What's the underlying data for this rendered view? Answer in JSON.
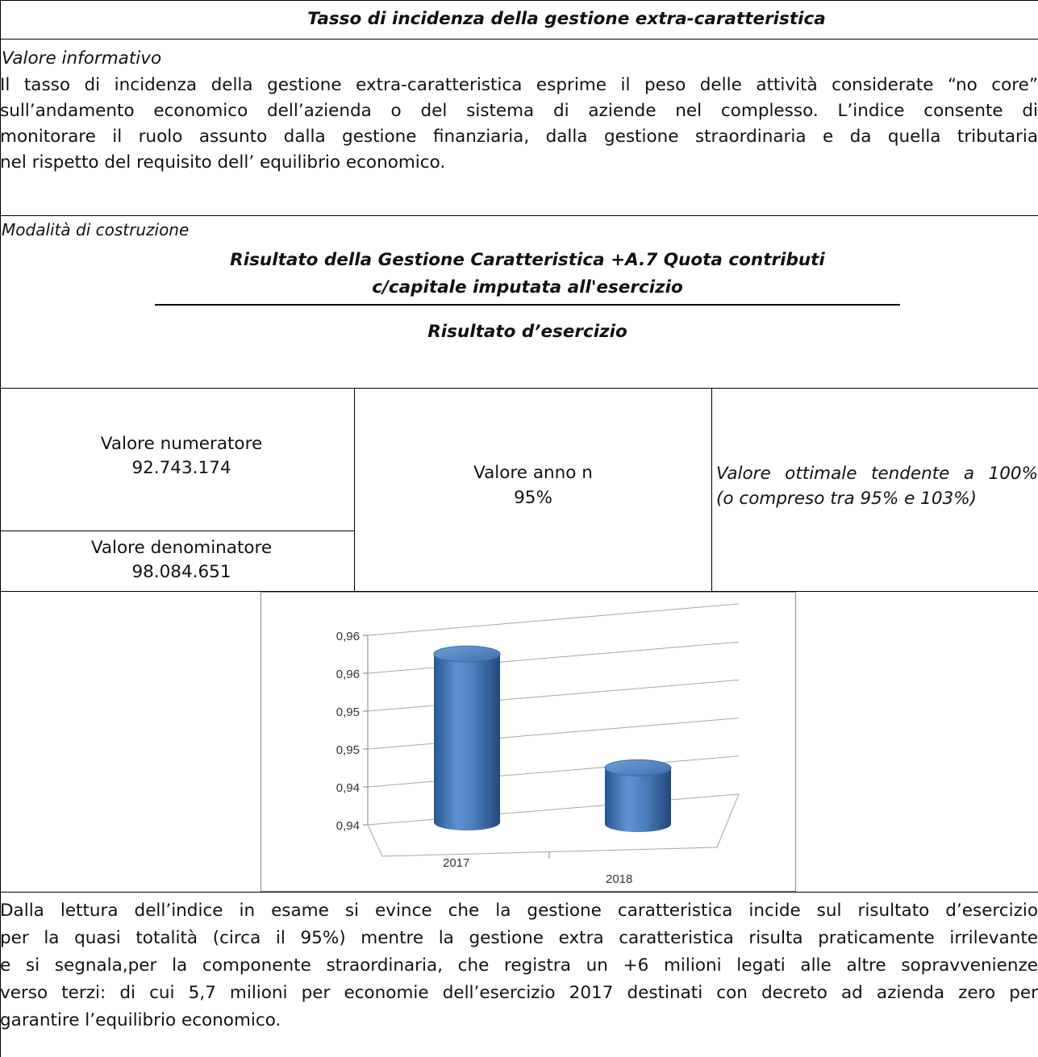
{
  "title": "Tasso di incidenza della gestione extra-caratteristica",
  "valore_informativo": {
    "heading": "Valore informativo",
    "lines": [
      "Il tasso di incidenza della gestione extra-caratteristica esprime il peso delle attività considerate “no core”",
      "sull’andamento economico dell’azienda o del sistema di aziende nel complesso. L’indice consente di",
      "monitorare il ruolo assunto dalla gestione finanziaria, dalla gestione straordinaria e da quella tributaria",
      "nel rispetto del requisito dell’ equilibrio economico."
    ]
  },
  "modalita": {
    "heading": "Modalità di costruzione",
    "numerator_line1": "Risultato della Gestione Caratteristica +A.7 Quota contributi",
    "numerator_line2": "c/capitale imputata all'esercizio",
    "denominator": "Risultato d’esercizio"
  },
  "values": {
    "numeratore_label": "Valore numeratore",
    "numeratore_value": "92.743.174",
    "denominatore_label": "Valore denominatore",
    "denominatore_value": "98.084.651",
    "anno_label": "Valore anno n",
    "anno_value": "95%",
    "ottimale_line1": "Valore ottimale tendente a 100%",
    "ottimale_line2": "(o compreso tra 95% e 103%)"
  },
  "chart_data": {
    "type": "bar",
    "style": "3d-cylinder",
    "categories": [
      "2017",
      "2018"
    ],
    "values": [
      0.958,
      0.946
    ],
    "y_tick_labels": [
      "0,94",
      "0,94",
      "0,95",
      "0,95",
      "0,96",
      "0,96"
    ],
    "ylim": [
      0.94,
      0.96
    ],
    "grid": true,
    "bar_color": "#4a7ebb",
    "legend": "none"
  },
  "conclusion": {
    "lines": [
      "Dalla lettura dell’indice in esame si evince che la gestione caratteristica incide sul risultato d’esercizio",
      "per la quasi totalità (circa il 95%) mentre la gestione extra caratteristica risulta praticamente irrilevante",
      "e si segnala,per la componente straordinaria, che registra un +6 milioni legati alle altre sopravvenienze",
      "verso terzi: di cui 5,7 milioni per economie dell’esercizio 2017 destinati con decreto ad azienda zero per"
    ],
    "last_line": "garantire l’equilibrio economico."
  }
}
